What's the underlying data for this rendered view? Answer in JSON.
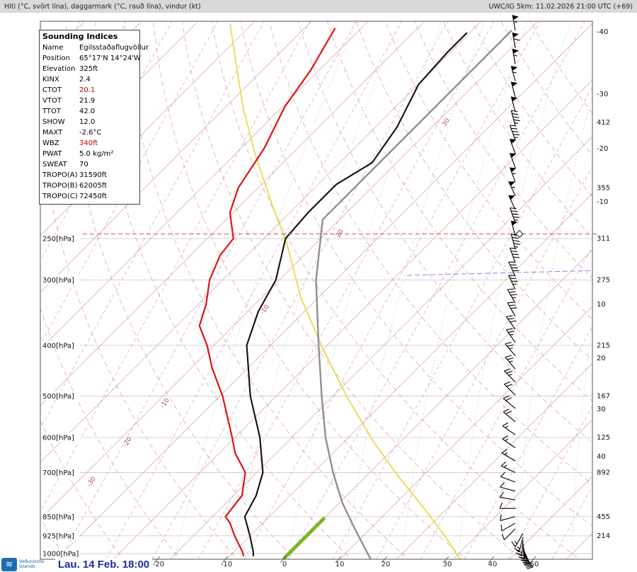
{
  "header": {
    "left": "Hiti (°C, svört lína), daggarmark (°C, rauð lína), vindur (kt)",
    "right": "UWC/IG 5km: 11.02.2026 21:00 UTC (+69)"
  },
  "footer": {
    "org_line1": "Veðurstofa",
    "org_line2": "Íslands",
    "date": "Lau. 14 Feb. 18:00"
  },
  "indices": {
    "title": "Sounding Indices",
    "rows": [
      {
        "label": "Name",
        "value": "Egilsstaðaflugvöllur"
      },
      {
        "label": "Position",
        "value": "65°17'N 14°24'W"
      },
      {
        "label": "Elevation",
        "value": "325ft"
      },
      {
        "label": "KINX",
        "value": "2.4"
      },
      {
        "label": "CTOT",
        "value": "20.1",
        "accent": "1"
      },
      {
        "label": "VTOT",
        "value": "21.9"
      },
      {
        "label": "TTOT",
        "value": "42.0"
      },
      {
        "label": "SHOW",
        "value": "12.0"
      },
      {
        "label": "MAXT",
        "value": "-2.6°C"
      },
      {
        "label": "WBZ",
        "value": "340ft",
        "accent": "1"
      },
      {
        "label": "PWAT",
        "value": "5.0 kg/m²"
      },
      {
        "label": "SWEAT",
        "value": "70"
      },
      {
        "label": "TROPO(A)",
        "value": "31590ft"
      },
      {
        "label": "TROPO(B)",
        "value": "62005ft"
      },
      {
        "label": "TROPO(C)",
        "value": "72450ft"
      }
    ]
  },
  "colors": {
    "temperature_line": "#101010",
    "dewpoint_line": "#e01212",
    "standard_atmosphere": "#8f8f8f",
    "yellow_line": "#ecd94c",
    "green_segment": "#80b428",
    "isotherm": "#d89098",
    "dry_adiabat": "#d06a78",
    "mixing_ratio": "#c45ac4",
    "moist_adiabat": "#4a9a4a",
    "tropopause_dash": "#e05050",
    "blue_reference": "#6a6ad0",
    "date_blue": "#17309c"
  },
  "chart_data": {
    "type": "line",
    "subtype": "skewT_logP_sounding",
    "pressure_axis": {
      "unit": "hPa",
      "labels": [
        250,
        300,
        400,
        500,
        600,
        700,
        850,
        925,
        1000
      ],
      "range": [
        100,
        1040
      ]
    },
    "temp_axis": {
      "unit": "°C",
      "bottom_labels": [
        {
          "t": "-20",
          "x": 222
        },
        {
          "t": "-10",
          "x": 318
        },
        {
          "t": "0",
          "x": 400
        },
        {
          "t": "10",
          "x": 478
        },
        {
          "t": "20",
          "x": 543
        },
        {
          "t": "30",
          "x": 630
        },
        {
          "t": "40",
          "x": 694
        },
        {
          "t": "50",
          "x": 753
        }
      ]
    },
    "right_temp_labels": [
      {
        "t": "-40",
        "y": 45
      },
      {
        "t": "-30",
        "y": 133
      },
      {
        "t": "-20",
        "y": 210
      },
      {
        "t": "-10",
        "y": 285
      },
      {
        "t": "10",
        "y": 430
      },
      {
        "t": "20",
        "y": 506
      },
      {
        "t": "30",
        "y": 578
      },
      {
        "t": "40",
        "y": 645
      }
    ],
    "right_height_labels": [
      {
        "p": 150,
        "text": "412"
      },
      {
        "p": 200,
        "text": "355"
      },
      {
        "p": 250,
        "text": "311"
      },
      {
        "p": 300,
        "text": "275"
      },
      {
        "p": 400,
        "text": "215"
      },
      {
        "p": 500,
        "text": "167"
      },
      {
        "p": 600,
        "text": "125"
      },
      {
        "p": 700,
        "text": "892"
      },
      {
        "p": 850,
        "text": "455"
      },
      {
        "p": 925,
        "text": "214"
      }
    ],
    "series": {
      "temperature_p_t": [
        [
          1012,
          -5.8
        ],
        [
          994,
          -6.5
        ],
        [
          925,
          -10.0
        ],
        [
          850,
          -14.3
        ],
        [
          775,
          -16.0
        ],
        [
          700,
          -18.9
        ],
        [
          600,
          -25.6
        ],
        [
          500,
          -34.6
        ],
        [
          400,
          -44.2
        ],
        [
          345,
          -48.1
        ],
        [
          300,
          -50.6
        ],
        [
          250,
          -56.2
        ],
        [
          223,
          -56.8
        ],
        [
          197,
          -56.8
        ],
        [
          179,
          -54.3
        ],
        [
          153,
          -56.2
        ],
        [
          127,
          -59.9
        ],
        [
          110,
          -60.5
        ],
        [
          101,
          -60.5
        ]
      ],
      "dewpoint_p_t": [
        [
          1012,
          -7.5
        ],
        [
          994,
          -8.4
        ],
        [
          925,
          -12.7
        ],
        [
          874,
          -15.8
        ],
        [
          850,
          -17.7
        ],
        [
          775,
          -18.5
        ],
        [
          700,
          -22.0
        ],
        [
          643,
          -27.2
        ],
        [
          600,
          -30.5
        ],
        [
          500,
          -39.5
        ],
        [
          442,
          -46.3
        ],
        [
          400,
          -51.2
        ],
        [
          367,
          -56.0
        ],
        [
          334,
          -58.6
        ],
        [
          300,
          -62.3
        ],
        [
          269,
          -64.8
        ],
        [
          250,
          -65.4
        ],
        [
          223,
          -70.6
        ],
        [
          200,
          -73.5
        ],
        [
          168,
          -75.9
        ],
        [
          140,
          -79.6
        ],
        [
          119,
          -81.5
        ],
        [
          99,
          -84.6
        ]
      ],
      "standard_atmosphere_p_t": [
        [
          1026,
          15.5
        ],
        [
          900,
          7.5
        ],
        [
          800,
          0.5
        ],
        [
          700,
          -6.5
        ],
        [
          600,
          -14.0
        ],
        [
          500,
          -22.0
        ],
        [
          400,
          -31.5
        ],
        [
          300,
          -43.5
        ],
        [
          250,
          -50.0
        ],
        [
          230,
          -53.0
        ],
        [
          180,
          -53.0
        ],
        [
          140,
          -53.0
        ],
        [
          100,
          -53.0
        ]
      ],
      "yellow_p_t": [
        [
          97,
          -104.0
        ],
        [
          140,
          -87.0
        ],
        [
          174,
          -76.0
        ],
        [
          216,
          -64.4
        ],
        [
          256,
          -55.0
        ],
        [
          324,
          -43.1
        ],
        [
          403,
          -30.6
        ],
        [
          501,
          -17.5
        ],
        [
          604,
          -5.6
        ],
        [
          705,
          5.0
        ],
        [
          824,
          16.3
        ],
        [
          933,
          25.0
        ],
        [
          1026,
          31.3
        ]
      ],
      "green_segment_p_t": [
        [
          1020,
          0.0
        ],
        [
          858,
          0.0
        ]
      ]
    },
    "winds_p_dir_kt": [
      [
        100,
        350,
        55
      ],
      [
        108,
        350,
        60
      ],
      [
        116,
        350,
        55
      ],
      [
        125,
        345,
        55
      ],
      [
        134,
        345,
        50
      ],
      [
        143,
        345,
        50
      ],
      [
        152,
        345,
        45
      ],
      [
        162,
        340,
        45
      ],
      [
        172,
        340,
        50
      ],
      [
        183,
        340,
        50
      ],
      [
        195,
        340,
        55
      ],
      [
        207,
        335,
        55
      ],
      [
        220,
        335,
        50
      ],
      [
        233,
        340,
        45
      ],
      [
        247,
        345,
        50
      ],
      [
        262,
        345,
        45
      ],
      [
        278,
        340,
        40
      ],
      [
        295,
        335,
        40
      ],
      [
        313,
        335,
        35
      ],
      [
        332,
        330,
        35
      ],
      [
        352,
        330,
        30
      ],
      [
        373,
        325,
        30
      ],
      [
        395,
        325,
        25
      ],
      [
        419,
        320,
        25
      ],
      [
        444,
        320,
        25
      ],
      [
        470,
        315,
        25
      ],
      [
        498,
        315,
        20
      ],
      [
        528,
        310,
        20
      ],
      [
        560,
        310,
        20
      ],
      [
        593,
        305,
        15
      ],
      [
        628,
        305,
        15
      ],
      [
        665,
        300,
        15
      ],
      [
        700,
        295,
        15
      ],
      [
        730,
        290,
        10
      ],
      [
        760,
        285,
        10
      ],
      [
        790,
        280,
        10
      ],
      [
        820,
        270,
        10
      ],
      [
        850,
        255,
        10
      ],
      [
        875,
        240,
        10
      ],
      [
        897,
        225,
        10
      ],
      [
        915,
        210,
        15
      ],
      [
        930,
        195,
        15
      ],
      [
        944,
        185,
        20
      ],
      [
        957,
        175,
        20
      ],
      [
        969,
        165,
        20
      ],
      [
        980,
        155,
        20
      ],
      [
        990,
        150,
        20
      ],
      [
        999,
        145,
        20
      ],
      [
        1007,
        140,
        15
      ]
    ],
    "tropopause_A_hPa": 245,
    "inline_labels": [
      {
        "text": "-30",
        "x": 127,
        "y": 688
      },
      {
        "text": "-20",
        "x": 178,
        "y": 632
      },
      {
        "text": "-10",
        "x": 231,
        "y": 577
      },
      {
        "text": "-10",
        "x": 372,
        "y": 445
      },
      {
        "text": "20",
        "x": 479,
        "y": 336
      },
      {
        "text": "30",
        "x": 629,
        "y": 179
      }
    ],
    "reference_lines": [
      {
        "color": "#6a6ad0",
        "dash": "7,4",
        "points": [
          [
            575,
            389
          ],
          [
            846,
            382
          ]
        ]
      }
    ],
    "grid": {
      "isotherm_c_min": -130,
      "isotherm_c_max": 60,
      "isotherm_step": 10,
      "dry_adiabat_theta_min": -40,
      "dry_adiabat_theta_max": 160,
      "dry_adiabat_step": 10,
      "moist_adiabat_thetaw": [
        -20,
        -10,
        0,
        10,
        20,
        30,
        40,
        50
      ],
      "mixing_bottom_x": [
        -305,
        -240,
        -175,
        -110,
        -45,
        20,
        85,
        150,
        215,
        280,
        345,
        408,
        470,
        532,
        594,
        656,
        718,
        780
      ]
    }
  }
}
